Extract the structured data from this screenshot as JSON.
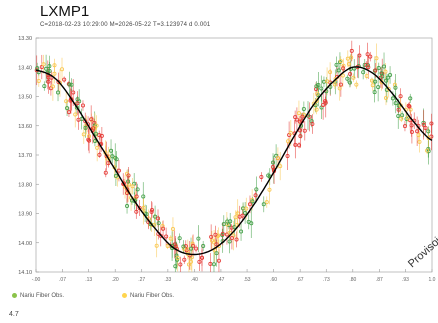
{
  "header": {
    "title": "LXMP1",
    "subtitle": "C=2018-02-23 10:29:00   M=2026-05-22   T=3.123974 d  0.001"
  },
  "legend": {
    "items": [
      {
        "label": "Nariu Fiber Obs.",
        "color": "#8bc34a"
      },
      {
        "label": "Nariu Fiber Obs.",
        "color": "#ffd54f"
      }
    ]
  },
  "footer": {
    "label": "4.7"
  },
  "watermark": "Provisoire",
  "colors": {
    "series_red": "#e53935",
    "series_green": "#43a047",
    "series_yellow": "#f9c74f",
    "fit_line": "#000000",
    "grid": "#dddddd",
    "axis": "#999999"
  },
  "chart_data": {
    "type": "scatter",
    "xlabel": "",
    "ylabel": "",
    "xlim": [
      0,
      1
    ],
    "ylim": [
      14.1,
      13.3
    ],
    "yticks": [
      13.3,
      13.4,
      13.5,
      13.6,
      13.7,
      13.8,
      13.9,
      14.0,
      14.1
    ],
    "ytick_labels": [
      "13.30",
      "13.40",
      "13.50",
      "13.60",
      "13.70",
      "13.80",
      "13.90",
      "14.00",
      "14.10"
    ],
    "xticks": [
      0.0,
      0.067,
      0.133,
      0.2,
      0.267,
      0.333,
      0.4,
      0.467,
      0.533,
      0.6,
      0.667,
      0.733,
      0.8,
      0.867,
      0.933,
      1.0
    ],
    "xtick_labels": [
      "-.00",
      ".07",
      ".13",
      ".20",
      ".27",
      ".33",
      ".40",
      ".47",
      ".53",
      ".60",
      ".67",
      ".73",
      ".80",
      ".87",
      ".93",
      "1.0"
    ],
    "fit": {
      "x": [
        0,
        0.05,
        0.1,
        0.15,
        0.2,
        0.25,
        0.3,
        0.35,
        0.4,
        0.45,
        0.5,
        0.55,
        0.6,
        0.65,
        0.7,
        0.75,
        0.8,
        0.85,
        0.9,
        0.95,
        1.0
      ],
      "y": [
        13.41,
        13.44,
        13.53,
        13.64,
        13.75,
        13.86,
        13.95,
        14.02,
        14.04,
        14.02,
        13.96,
        13.87,
        13.76,
        13.64,
        13.53,
        13.45,
        13.4,
        13.42,
        13.49,
        13.58,
        13.65
      ]
    },
    "series": [
      {
        "name": "Nariu Fiber Obs.",
        "color": "#e53935"
      },
      {
        "name": "Nariu Fiber Obs.",
        "color": "#43a047"
      },
      {
        "name": "",
        "color": "#f9c74f"
      }
    ],
    "grid": false,
    "legend_position": "bottom-left"
  }
}
